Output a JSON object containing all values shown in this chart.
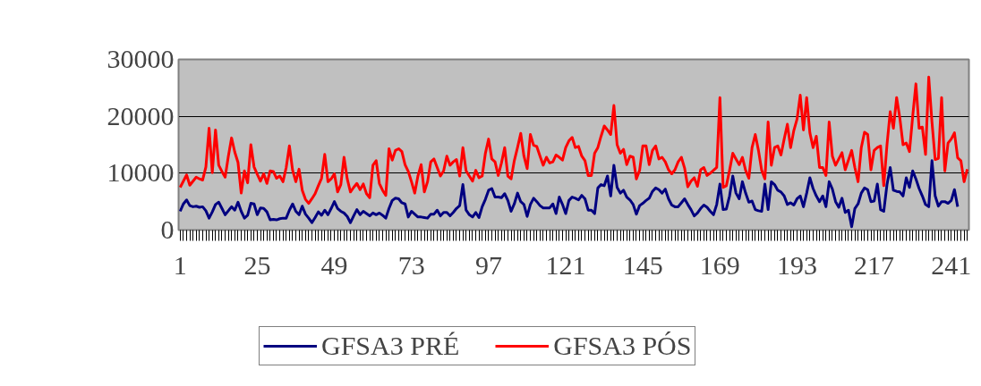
{
  "chart_data": {
    "type": "line",
    "categories": [
      "1",
      null,
      null,
      null,
      null,
      null,
      null,
      null,
      null,
      null,
      null,
      null,
      null,
      null,
      null,
      null,
      null,
      null,
      null,
      null,
      null,
      null,
      null,
      null,
      "25",
      null,
      null,
      null,
      null,
      null,
      null,
      null,
      null,
      null,
      null,
      null,
      null,
      null,
      null,
      null,
      null,
      null,
      null,
      null,
      null,
      null,
      null,
      null,
      "49",
      null,
      null,
      null,
      null,
      null,
      null,
      null,
      null,
      null,
      null,
      null,
      null,
      null,
      null,
      null,
      null,
      null,
      null,
      null,
      null,
      null,
      null,
      null,
      "73",
      null,
      null,
      null,
      null,
      null,
      null,
      null,
      null,
      null,
      null,
      null,
      null,
      null,
      null,
      null,
      null,
      null,
      null,
      null,
      null,
      null,
      null,
      null,
      "97",
      null,
      null,
      null,
      null,
      null,
      null,
      null,
      null,
      null,
      null,
      null,
      null,
      null,
      null,
      null,
      null,
      null,
      null,
      null,
      null,
      null,
      null,
      null,
      "121",
      null,
      null,
      null,
      null,
      null,
      null,
      null,
      null,
      null,
      null,
      null,
      null,
      null,
      null,
      null,
      null,
      null,
      null,
      null,
      null,
      null,
      null,
      null,
      "145",
      null,
      null,
      null,
      null,
      null,
      null,
      null,
      null,
      null,
      null,
      null,
      null,
      null,
      null,
      null,
      null,
      null,
      null,
      null,
      null,
      null,
      null,
      null,
      "169",
      null,
      null,
      null,
      null,
      null,
      null,
      null,
      null,
      null,
      null,
      null,
      null,
      null,
      null,
      null,
      null,
      null,
      null,
      null,
      null,
      null,
      null,
      null,
      "193",
      null,
      null,
      null,
      null,
      null,
      null,
      null,
      null,
      null,
      null,
      null,
      null,
      null,
      null,
      null,
      null,
      null,
      null,
      null,
      null,
      null,
      null,
      null,
      "217",
      null,
      null,
      null,
      null,
      null,
      null,
      null,
      null,
      null,
      null,
      null,
      null,
      null,
      null,
      null,
      null,
      null,
      null,
      null,
      null,
      null,
      null,
      null,
      "241",
      null,
      null,
      null,
      null,
      null
    ],
    "series": [
      {
        "name": "GFSA3 PRÉ",
        "color": "#000080",
        "values": [
          3300,
          4600,
          5300,
          4300,
          4100,
          4200,
          4000,
          4100,
          3400,
          2100,
          3200,
          4500,
          4900,
          3800,
          2700,
          3400,
          4100,
          3500,
          4900,
          3300,
          2100,
          2600,
          4700,
          4600,
          2700,
          3900,
          3800,
          3200,
          1800,
          1900,
          1800,
          2000,
          2100,
          2100,
          3500,
          4600,
          3300,
          2700,
          4200,
          2800,
          2100,
          1300,
          2200,
          3200,
          2600,
          3500,
          2700,
          3800,
          5000,
          3800,
          3300,
          3000,
          2400,
          1300,
          2500,
          3600,
          2700,
          3300,
          2900,
          2500,
          3000,
          2700,
          3000,
          2600,
          2100,
          3800,
          5200,
          5600,
          5500,
          4800,
          4600,
          2300,
          3300,
          2800,
          2300,
          2300,
          2200,
          2100,
          2800,
          2800,
          3500,
          2500,
          3100,
          3100,
          2500,
          3100,
          3800,
          4300,
          8000,
          3500,
          2700,
          2300,
          3100,
          2200,
          4100,
          5400,
          7000,
          7300,
          5800,
          5800,
          5700,
          6400,
          5200,
          3300,
          4600,
          6500,
          5000,
          4500,
          2400,
          4500,
          5600,
          5000,
          4300,
          3900,
          3900,
          3900,
          4600,
          2900,
          5800,
          4500,
          2900,
          5200,
          5800,
          5600,
          5300,
          6100,
          5500,
          3500,
          3500,
          2900,
          7400,
          8000,
          7800,
          9500,
          6000,
          11400,
          7500,
          6500,
          7000,
          5800,
          5300,
          4500,
          2800,
          4300,
          4700,
          5200,
          5600,
          6800,
          7400,
          7100,
          6500,
          7200,
          5500,
          4400,
          4100,
          4100,
          4800,
          5500,
          4500,
          3600,
          2500,
          3000,
          3800,
          4400,
          4000,
          3300,
          2700,
          4500,
          8100,
          3600,
          3700,
          6000,
          9500,
          6500,
          5500,
          8500,
          6500,
          4900,
          5100,
          3600,
          3400,
          3300,
          8100,
          3600,
          8500,
          8000,
          7000,
          6700,
          6000,
          4500,
          4800,
          4400,
          5500,
          6000,
          4100,
          6500,
          9200,
          7300,
          6000,
          5000,
          6000,
          4100,
          8500,
          7200,
          5000,
          4000,
          5600,
          3100,
          3500,
          600,
          3800,
          4600,
          6500,
          7400,
          7100,
          5000,
          5100,
          8100,
          3600,
          3300,
          8000,
          11000,
          7000,
          6800,
          6700,
          6000,
          9200,
          7500,
          10400,
          9000,
          7300,
          6000,
          4500,
          4100,
          12200,
          6000,
          4200,
          5000,
          5000,
          4700,
          5200,
          7100,
          4100,
          null,
          null,
          null
        ]
      },
      {
        "name": "GFSA3 PÓS",
        "color": "#ff0000",
        "values": [
          7500,
          8600,
          9700,
          7900,
          8600,
          9300,
          9000,
          8800,
          11100,
          17900,
          10100,
          17600,
          11400,
          10300,
          9300,
          13000,
          16200,
          13700,
          11900,
          6500,
          10400,
          8300,
          15000,
          11100,
          9800,
          8600,
          9900,
          8200,
          10400,
          10300,
          9100,
          9500,
          8500,
          11000,
          14800,
          10500,
          8500,
          10700,
          7000,
          5400,
          4700,
          5500,
          6400,
          7800,
          9100,
          13300,
          8500,
          9000,
          9900,
          6700,
          8000,
          12800,
          9000,
          6700,
          7500,
          8200,
          7100,
          8100,
          6400,
          5700,
          11400,
          12200,
          8200,
          7000,
          6100,
          14300,
          12300,
          14000,
          14300,
          13800,
          11500,
          10300,
          8500,
          6500,
          9500,
          11500,
          6700,
          8500,
          12000,
          12500,
          11000,
          9500,
          10400,
          13000,
          11400,
          12000,
          12400,
          9500,
          14500,
          10400,
          9500,
          8600,
          10500,
          9200,
          9500,
          13500,
          16000,
          12500,
          12000,
          9600,
          11800,
          14500,
          9500,
          9000,
          12200,
          14500,
          17000,
          13000,
          10800,
          16800,
          14900,
          14700,
          13000,
          11400,
          12800,
          11800,
          12000,
          13200,
          12800,
          12300,
          14500,
          15700,
          16300,
          14500,
          14700,
          13000,
          12200,
          9600,
          9600,
          13500,
          14500,
          16500,
          18300,
          17600,
          16800,
          21900,
          15000,
          13500,
          14200,
          11500,
          13000,
          12800,
          9000,
          10500,
          14800,
          14800,
          11500,
          14000,
          14800,
          12500,
          12800,
          12000,
          10600,
          9900,
          10600,
          12000,
          12800,
          10900,
          7600,
          8600,
          9200,
          7700,
          10600,
          11000,
          9600,
          10000,
          10500,
          11000,
          23300,
          7500,
          7800,
          10500,
          13500,
          12500,
          11500,
          12800,
          10500,
          9100,
          14500,
          16800,
          14000,
          10500,
          9000,
          19000,
          11400,
          14500,
          14800,
          13200,
          16000,
          18600,
          14500,
          17500,
          19500,
          23700,
          17600,
          23300,
          17100,
          14500,
          16500,
          11000,
          11000,
          9600,
          19000,
          13000,
          11400,
          12500,
          13600,
          10600,
          12300,
          14000,
          11000,
          8500,
          14500,
          17200,
          16800,
          10600,
          14000,
          14500,
          14800,
          7800,
          15000,
          20800,
          17900,
          23300,
          19700,
          15000,
          15300,
          13800,
          20000,
          25700,
          17900,
          18100,
          13300,
          26900,
          19000,
          12400,
          12600,
          23300,
          10400,
          15300,
          16000,
          17100,
          12700,
          12200,
          8500,
          10700
        ]
      }
    ],
    "ylim": [
      0,
      30000
    ],
    "yticks": [
      0,
      10000,
      20000,
      30000
    ],
    "grid": "y",
    "legend": "bottom",
    "line_style": "solid",
    "marker": "none"
  }
}
